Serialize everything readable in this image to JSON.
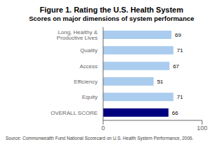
{
  "chart_data": {
    "type": "bar",
    "title": "Figure 1. Rating the U.S. Health System",
    "subtitle": "Scores on major dimensions of system performance",
    "categories": [
      "Long, Healthy & Productive Lives",
      "Quality",
      "Access",
      "Efficiency",
      "Equity",
      "OVERALL SCORE"
    ],
    "values": [
      69,
      71,
      67,
      51,
      71,
      66
    ],
    "colors": [
      "#aaccee",
      "#aaccee",
      "#aaccee",
      "#aaccee",
      "#aaccee",
      "#00007f"
    ],
    "xlim": [
      0,
      100
    ],
    "xticks": [
      0,
      100
    ],
    "orientation": "horizontal",
    "data_labels": true,
    "grid": false,
    "annotations": [
      "Source: Commonwealth Fund National Scorecard on U.S. Health System Performance, 2006."
    ]
  }
}
